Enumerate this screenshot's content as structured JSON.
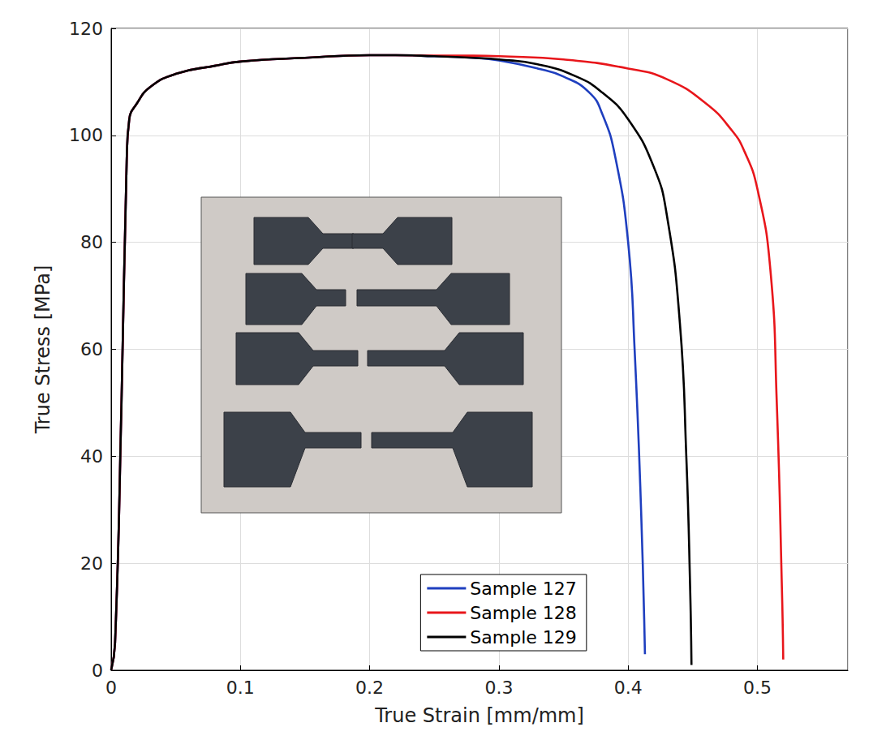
{
  "chart_data": {
    "type": "line",
    "x_label": "True Strain [mm/mm]",
    "y_label": "True Stress [MPa]",
    "xlim": [
      0,
      0.57
    ],
    "xticks": [
      0,
      0.1,
      0.2,
      0.3,
      0.4,
      0.5
    ],
    "ylim": [
      0,
      120
    ],
    "yticks": [
      0,
      20,
      40,
      60,
      80,
      100,
      120
    ],
    "grid": true,
    "legend": "lower center",
    "series": [
      {
        "name": "Sample 127",
        "color": "#1f3fbf",
        "line_style": "solid",
        "x": [
          0,
          0.003,
          0.008,
          0.012,
          0.014,
          0.02,
          0.03,
          0.05,
          0.08,
          0.1,
          0.15,
          0.2,
          0.22,
          0.25,
          0.28,
          0.3,
          0.33,
          0.35,
          0.37,
          0.38,
          0.39,
          0.4,
          0.405,
          0.41,
          0.413
        ],
        "values": [
          0,
          5,
          50,
          95,
          103,
          106,
          109,
          111.5,
          113,
          113.8,
          114.5,
          115,
          115,
          114.8,
          114.5,
          114,
          112.5,
          111,
          108,
          104,
          96,
          80,
          60,
          30,
          3
        ]
      },
      {
        "name": "Sample 128",
        "color": "#e8161b",
        "line_style": "solid",
        "x": [
          0,
          0.003,
          0.008,
          0.012,
          0.014,
          0.02,
          0.03,
          0.05,
          0.08,
          0.1,
          0.15,
          0.2,
          0.22,
          0.25,
          0.28,
          0.3,
          0.35,
          0.4,
          0.43,
          0.46,
          0.48,
          0.49,
          0.5,
          0.51,
          0.515,
          0.519,
          0.52
        ],
        "values": [
          0,
          5,
          50,
          95,
          103,
          106,
          109,
          111.5,
          113,
          113.8,
          114.5,
          115,
          115,
          114.9,
          114.9,
          114.8,
          114.2,
          112.5,
          110.5,
          106,
          101,
          97,
          90,
          75,
          50,
          15,
          2
        ]
      },
      {
        "name": "Sample 129",
        "color": "#000000",
        "line_style": "solid",
        "x": [
          0,
          0.003,
          0.008,
          0.012,
          0.014,
          0.02,
          0.03,
          0.05,
          0.08,
          0.1,
          0.15,
          0.2,
          0.22,
          0.25,
          0.28,
          0.3,
          0.33,
          0.36,
          0.38,
          0.4,
          0.42,
          0.43,
          0.44,
          0.445,
          0.448,
          0.449
        ],
        "values": [
          0,
          5,
          50,
          95,
          103,
          106,
          109,
          111.5,
          113,
          113.8,
          114.5,
          115,
          115,
          114.8,
          114.5,
          114.2,
          113.3,
          111,
          108,
          103,
          94,
          85,
          65,
          40,
          15,
          1
        ]
      }
    ]
  }
}
